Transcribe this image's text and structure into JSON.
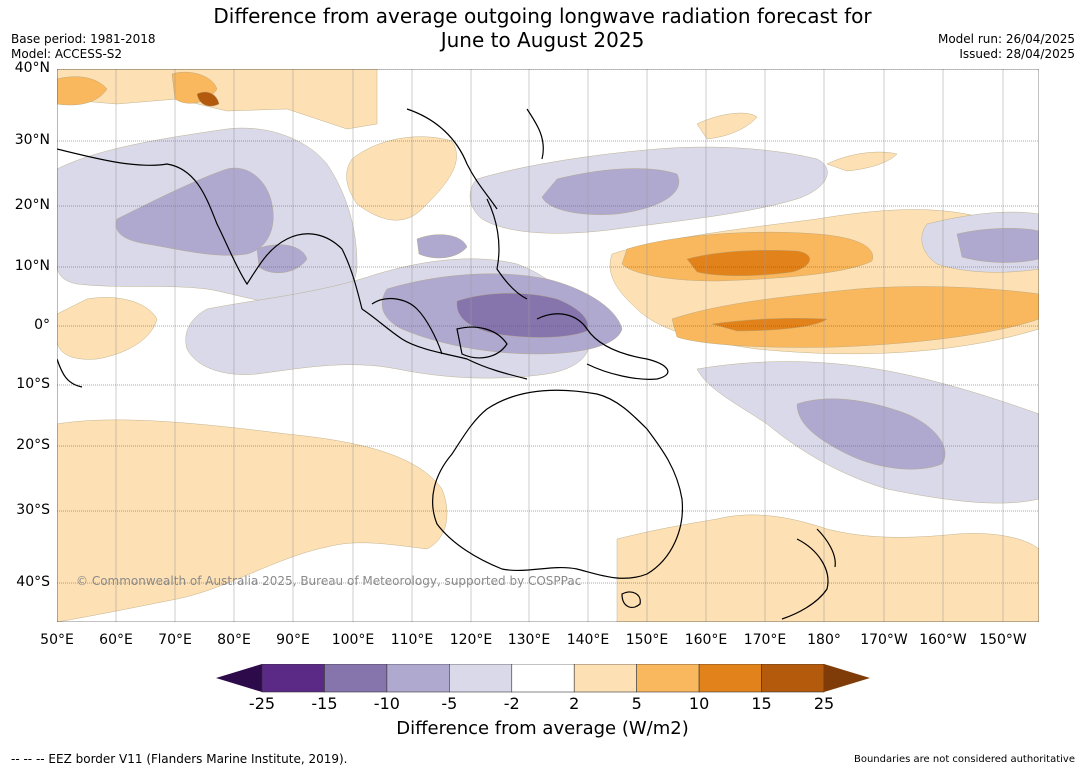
{
  "title": {
    "line1": "Difference from average outgoing longwave radiation forecast for",
    "line2": "June to August 2025"
  },
  "meta": {
    "base_period": "Base period: 1981-2018",
    "model": "Model: ACCESS-S2",
    "model_run": "Model run: 26/04/2025",
    "issued": "Issued: 28/04/2025"
  },
  "map": {
    "copyright": "© Commonwealth of Australia 2025, Bureau of Meteorology, supported by COSPPac",
    "lat_labels": [
      "40°N",
      "30°N",
      "20°N",
      "10°N",
      "0°",
      "10°S",
      "20°S",
      "30°S",
      "40°S"
    ],
    "lon_labels": [
      "50°E",
      "60°E",
      "70°E",
      "80°E",
      "90°E",
      "100°E",
      "110°E",
      "120°E",
      "130°E",
      "140°E",
      "150°E",
      "160°E",
      "170°E",
      "180°",
      "170°W",
      "160°W",
      "150°W"
    ]
  },
  "colorbar": {
    "title": "Difference from average (W/m2)",
    "ticks": [
      "-25",
      "-15",
      "-10",
      "-5",
      "-2",
      "2",
      "5",
      "10",
      "15",
      "25"
    ],
    "colors": {
      "below_min": "#2d0a4a",
      "c1": "#5b2a86",
      "c2": "#8674ad",
      "c3": "#b0a9cf",
      "c4": "#d9d9ea",
      "c5": "#ffffff",
      "c6": "#fde0b3",
      "c7": "#f9b75e",
      "c8": "#e2821a",
      "c9": "#b35a0c",
      "above_max": "#7f3b08"
    }
  },
  "footer": {
    "eez": "--  --  -- EEZ border V11 (Flanders Marine Institute, 2019).",
    "boundaries": "Boundaries are not considered authoritative"
  }
}
